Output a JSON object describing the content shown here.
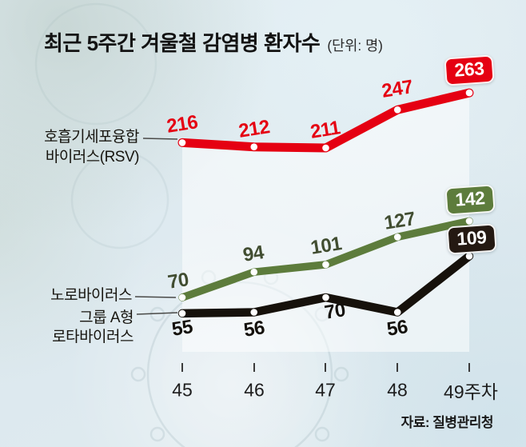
{
  "title": {
    "text": "최근 5주간 겨울철 감염병 환자수",
    "unit": "(단위: 명)"
  },
  "series_labels": {
    "rsv_line1": "호흡기세포융합",
    "rsv_line2": "바이러스(RSV)",
    "noro": "노로바이러스",
    "rota_line1": "그룹 A형",
    "rota_line2": "로타바이러스"
  },
  "source": "자료: 질병관리청",
  "colors": {
    "background": "#dfeaf0",
    "area_under_rsv": "rgba(255,255,255,0.52)",
    "rsv_red": "#e50012",
    "noro_green": "#5d7c3c",
    "rota_black": "#16110b",
    "rota_badge": "#241912",
    "green_value_text": "#414d31",
    "tick": "#3c3c3c"
  },
  "chart_data": {
    "type": "line",
    "title": "최근 5주간 겨울철 감염병 환자수",
    "unit": "명",
    "x": [
      45,
      46,
      47,
      48,
      49
    ],
    "x_tick_labels": [
      "45",
      "46",
      "47",
      "48",
      "49주차"
    ],
    "xlabel": "주차",
    "ylabel": "환자수(명)",
    "grid": false,
    "legend_position": "left-of-first-point",
    "series": [
      {
        "name": "호흡기세포융합 바이러스(RSV)",
        "color": "#e50012",
        "values": [
          216,
          212,
          211,
          247,
          263
        ]
      },
      {
        "name": "노로바이러스",
        "color": "#5d7c3c",
        "values": [
          70,
          94,
          101,
          127,
          142
        ]
      },
      {
        "name": "그룹 A형 로타바이러스",
        "color": "#16110b",
        "values": [
          55,
          56,
          70,
          56,
          109
        ]
      }
    ],
    "last_value_badges": [
      263,
      142,
      109
    ],
    "source": "자료: 질병관리청"
  }
}
